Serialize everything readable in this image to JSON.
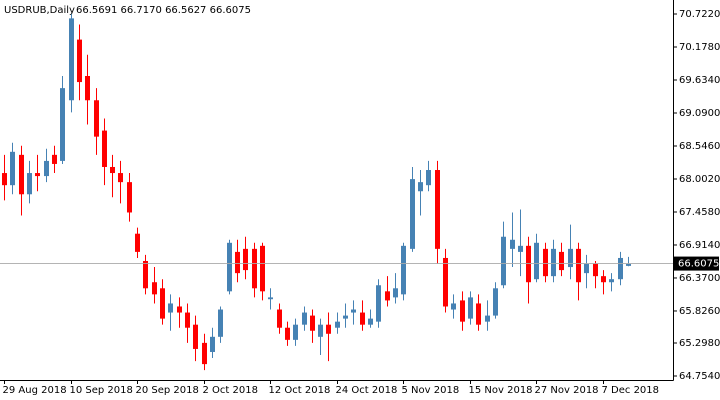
{
  "chart_data": {
    "type": "candlestick",
    "title": "USDRUB,Daily",
    "subtitle": "66.5691 66.7170 66.5627 66.6075",
    "categories": [
      "29 Aug 2018",
      null,
      null,
      null,
      null,
      null,
      null,
      null,
      "10 Sep 2018",
      null,
      null,
      null,
      null,
      null,
      null,
      null,
      "20 Sep 2018",
      null,
      null,
      null,
      null,
      null,
      null,
      null,
      "2 Oct 2018",
      null,
      null,
      null,
      null,
      null,
      null,
      null,
      "12 Oct 2018",
      null,
      null,
      null,
      null,
      null,
      null,
      null,
      "24 Oct 2018",
      null,
      null,
      null,
      null,
      null,
      null,
      null,
      "5 Nov 2018",
      null,
      null,
      null,
      null,
      null,
      null,
      null,
      "15 Nov 2018",
      null,
      null,
      null,
      null,
      null,
      null,
      null,
      "27 Nov 2018",
      null,
      null,
      null,
      null,
      null,
      null,
      null,
      "7 Dec 2018",
      null,
      null,
      null
    ],
    "open": [
      68.1,
      67.9,
      68.4,
      67.75,
      68.1,
      68.05,
      68.4,
      68.3,
      69.3,
      70.3,
      69.7,
      69.3,
      68.8,
      68.2,
      68.1,
      67.95,
      67.1,
      66.65,
      66.3,
      66.2,
      65.8,
      65.9,
      65.8,
      65.6,
      65.3,
      65.15,
      65.4,
      66.15,
      66.8,
      66.85,
      66.85,
      66.9,
      66.02,
      65.85,
      65.55,
      65.35,
      65.6,
      65.75,
      65.4,
      65.6,
      65.55,
      65.7,
      65.8,
      65.8,
      65.6,
      65.65,
      66.15,
      66.05,
      66.1,
      66.85,
      67.8,
      67.9,
      68.15,
      66.7,
      65.85,
      66.0,
      65.7,
      65.95,
      65.65,
      65.75,
      66.25,
      66.85,
      66.8,
      66.9,
      66.35,
      66.85,
      66.4,
      66.8,
      66.55,
      66.85,
      66.45,
      66.6,
      66.4,
      66.3,
      66.35,
      66.5691
    ],
    "high": [
      68.4,
      68.6,
      68.55,
      68.3,
      68.4,
      68.5,
      68.55,
      69.7,
      70.72,
      70.55,
      70.05,
      69.5,
      69.0,
      68.4,
      68.3,
      68.1,
      67.2,
      66.75,
      66.55,
      66.35,
      66.1,
      66.05,
      65.95,
      65.75,
      65.45,
      65.55,
      65.9,
      67.0,
      67.0,
      67.05,
      66.95,
      66.95,
      66.2,
      65.95,
      65.65,
      65.7,
      65.9,
      65.85,
      65.7,
      65.8,
      65.8,
      65.95,
      66.0,
      66.0,
      65.85,
      66.35,
      66.4,
      66.45,
      66.95,
      68.2,
      68.15,
      68.3,
      68.3,
      66.85,
      66.1,
      66.15,
      66.15,
      66.1,
      66.0,
      66.3,
      67.3,
      67.45,
      67.5,
      67.05,
      67.1,
      66.95,
      67.0,
      66.95,
      67.25,
      66.95,
      66.75,
      66.65,
      66.5,
      66.45,
      66.8,
      66.717
    ],
    "low": [
      67.65,
      67.75,
      67.4,
      67.6,
      67.8,
      67.95,
      68.1,
      68.25,
      69.1,
      69.3,
      68.9,
      68.4,
      67.9,
      67.7,
      67.6,
      67.3,
      66.7,
      66.1,
      65.95,
      65.6,
      65.5,
      65.55,
      65.3,
      65.0,
      64.85,
      65.05,
      65.3,
      66.1,
      66.3,
      66.35,
      66.05,
      66.0,
      65.85,
      65.45,
      65.25,
      65.25,
      65.5,
      65.3,
      65.1,
      65.0,
      65.45,
      65.55,
      65.6,
      65.5,
      65.55,
      65.55,
      65.9,
      65.95,
      66.0,
      66.8,
      67.4,
      67.8,
      66.6,
      65.8,
      65.7,
      65.5,
      65.6,
      65.5,
      65.5,
      65.7,
      66.2,
      66.55,
      66.4,
      65.95,
      66.3,
      66.3,
      66.3,
      66.4,
      66.35,
      66.0,
      66.2,
      66.2,
      66.1,
      66.15,
      66.25,
      66.5627
    ],
    "close": [
      67.9,
      68.45,
      67.75,
      68.1,
      68.05,
      68.3,
      68.25,
      69.5,
      70.65,
      69.6,
      69.3,
      68.7,
      68.2,
      68.1,
      67.95,
      67.45,
      66.8,
      66.2,
      66.1,
      65.7,
      65.95,
      65.8,
      65.55,
      65.2,
      64.95,
      65.4,
      65.85,
      66.95,
      66.45,
      66.5,
      66.2,
      66.15,
      66.05,
      65.55,
      65.35,
      65.6,
      65.8,
      65.5,
      65.6,
      65.45,
      65.65,
      65.75,
      65.85,
      65.6,
      65.7,
      66.25,
      66.0,
      66.2,
      66.9,
      68.0,
      67.95,
      68.15,
      66.85,
      65.9,
      65.95,
      65.65,
      66.05,
      65.6,
      65.75,
      66.2,
      67.05,
      67.0,
      66.9,
      66.3,
      66.95,
      66.4,
      66.85,
      66.5,
      66.85,
      66.3,
      66.6,
      66.4,
      66.3,
      66.35,
      66.7,
      66.6075
    ],
    "up_color": "#4682b4",
    "down_color": "#ff0000",
    "last_price": {
      "value": 66.6075,
      "label": "66.6075"
    },
    "ylim": [
      64.688,
      70.953
    ],
    "yticks": [
      {
        "value": 70.722,
        "label": "70.7220"
      },
      {
        "value": 70.178,
        "label": "70.1780"
      },
      {
        "value": 69.634,
        "label": "69.6340"
      },
      {
        "value": 69.09,
        "label": "69.0900"
      },
      {
        "value": 68.546,
        "label": "68.5460"
      },
      {
        "value": 68.002,
        "label": "68.0020"
      },
      {
        "value": 67.458,
        "label": "67.4580"
      },
      {
        "value": 66.914,
        "label": "66.9140"
      },
      {
        "value": 66.37,
        "label": "66.3700"
      },
      {
        "value": 65.826,
        "label": "65.8260"
      },
      {
        "value": 65.298,
        "label": "65.2980"
      },
      {
        "value": 64.754,
        "label": "64.7540"
      }
    ]
  }
}
